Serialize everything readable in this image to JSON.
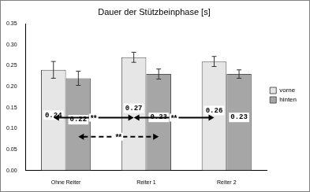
{
  "chart_data": {
    "type": "bar",
    "title": "Dauer der Stützbeinphase [s]",
    "categories": [
      "Ohne Reiter",
      "Reiter 1",
      "Reiter 2"
    ],
    "series": [
      {
        "name": "vorne",
        "color": "#e6e6e6",
        "values": [
          0.24,
          0.27,
          0.26
        ],
        "errors": [
          0.02,
          0.012,
          0.012
        ]
      },
      {
        "name": "hinten",
        "color": "#a6a6a6",
        "values": [
          0.22,
          0.23,
          0.23
        ],
        "errors": [
          0.017,
          0.012,
          0.01
        ]
      }
    ],
    "ylim": [
      0,
      0.35
    ],
    "yticks": [
      {
        "value": 0,
        "label": "0.00"
      },
      {
        "value": 0.05,
        "label": "0.05"
      },
      {
        "value": 0.1,
        "label": "0.10"
      },
      {
        "value": 0.15,
        "label": "0.15"
      },
      {
        "value": 0.2,
        "label": "0.20"
      },
      {
        "value": 0.25,
        "label": "0.25"
      },
      {
        "value": 0.3,
        "label": "0.30"
      },
      {
        "value": 0.35,
        "label": "0.35"
      }
    ],
    "grid": false,
    "legend": "right",
    "data_labels": true,
    "annotations": [
      {
        "text": "**",
        "from": "Ohne Reiter",
        "to": "Reiter 1",
        "series": "vorne",
        "line_style": "solid"
      },
      {
        "text": "**",
        "from": "Reiter 1",
        "to": "Reiter 2",
        "series": "vorne",
        "line_style": "solid"
      },
      {
        "text": "**",
        "from": "Ohne Reiter",
        "to": "Reiter 1",
        "series": "hinten",
        "line_style": "dashed"
      }
    ]
  }
}
